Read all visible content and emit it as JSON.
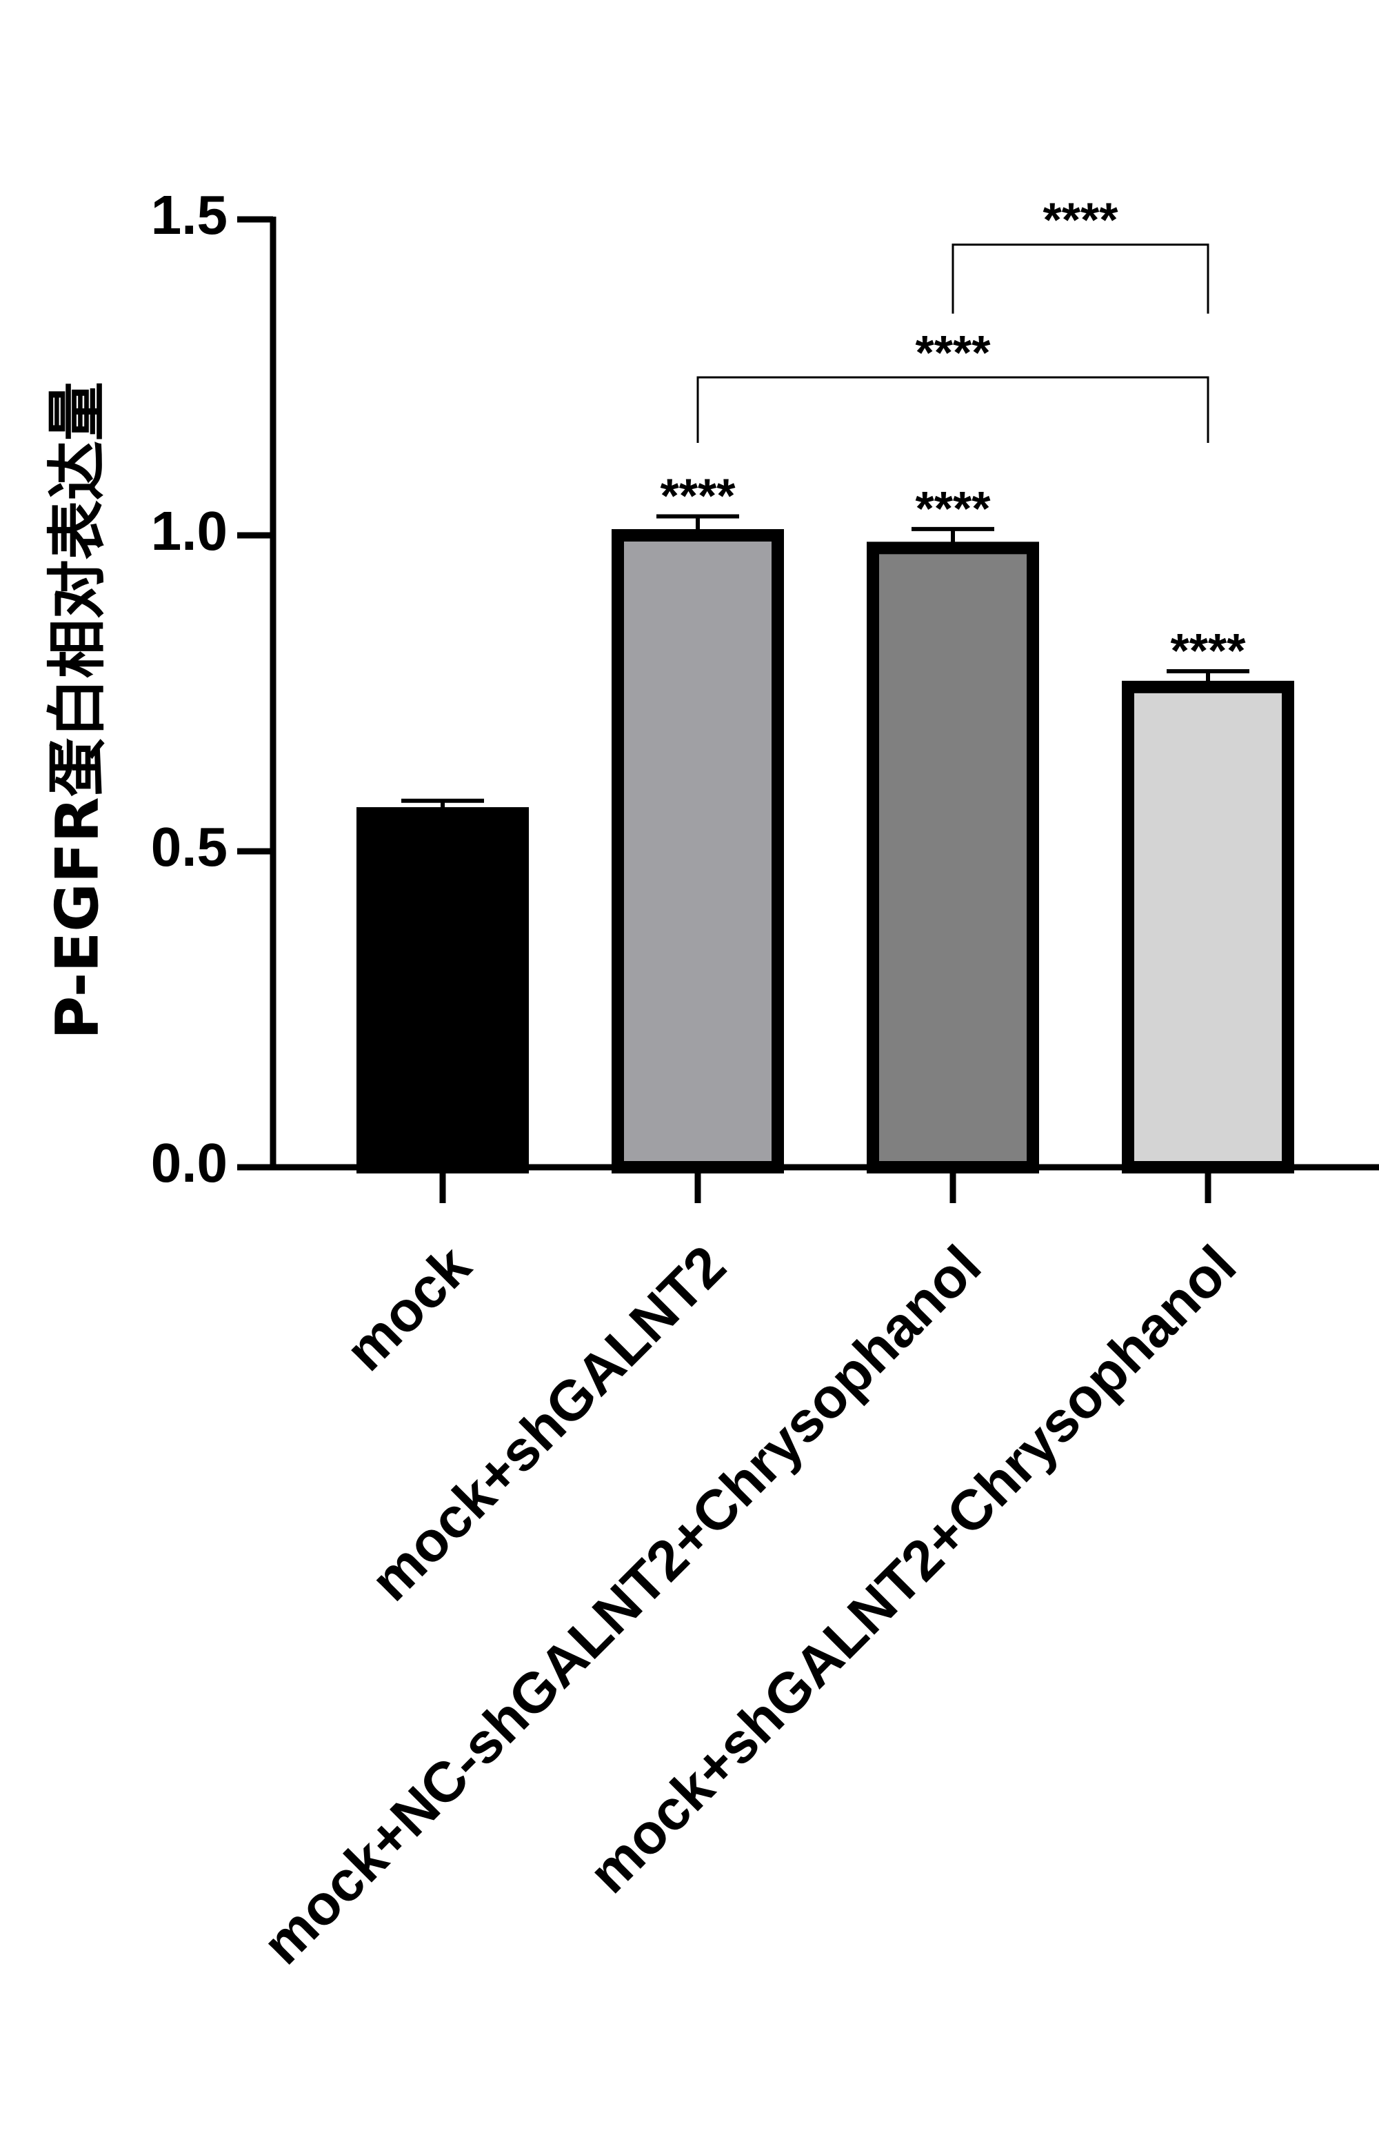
{
  "chart_data": {
    "type": "bar",
    "title": "",
    "xlabel": "",
    "ylabel": "P-EGFR蛋白相对表达量",
    "ylim": [
      0,
      1.5
    ],
    "yticks": [
      "0.0",
      "0.5",
      "1.0",
      "1.5"
    ],
    "ytick_values": [
      0,
      0.5,
      1.0,
      1.5
    ],
    "grid": false,
    "legend": "none",
    "categories": [
      "mock",
      "mock+shGALNT2",
      "mock+NC-shGALNT2+Chrysophanol",
      "mock+shGALNT2+Chrysophanol"
    ],
    "values": [
      0.56,
      1.0,
      0.98,
      0.76
    ],
    "errors": [
      0.02,
      0.03,
      0.03,
      0.025
    ],
    "colors": [
      "#000000",
      "#a0a0a4",
      "#808080",
      "#d4d4d4"
    ],
    "bar_significance": [
      "",
      "****",
      "****",
      "****"
    ],
    "comparisons": [
      {
        "from": 2,
        "to": 3,
        "label": "****",
        "y": 1.46
      },
      {
        "from": 1,
        "to": 3,
        "label": "****",
        "y": 1.25
      }
    ]
  }
}
